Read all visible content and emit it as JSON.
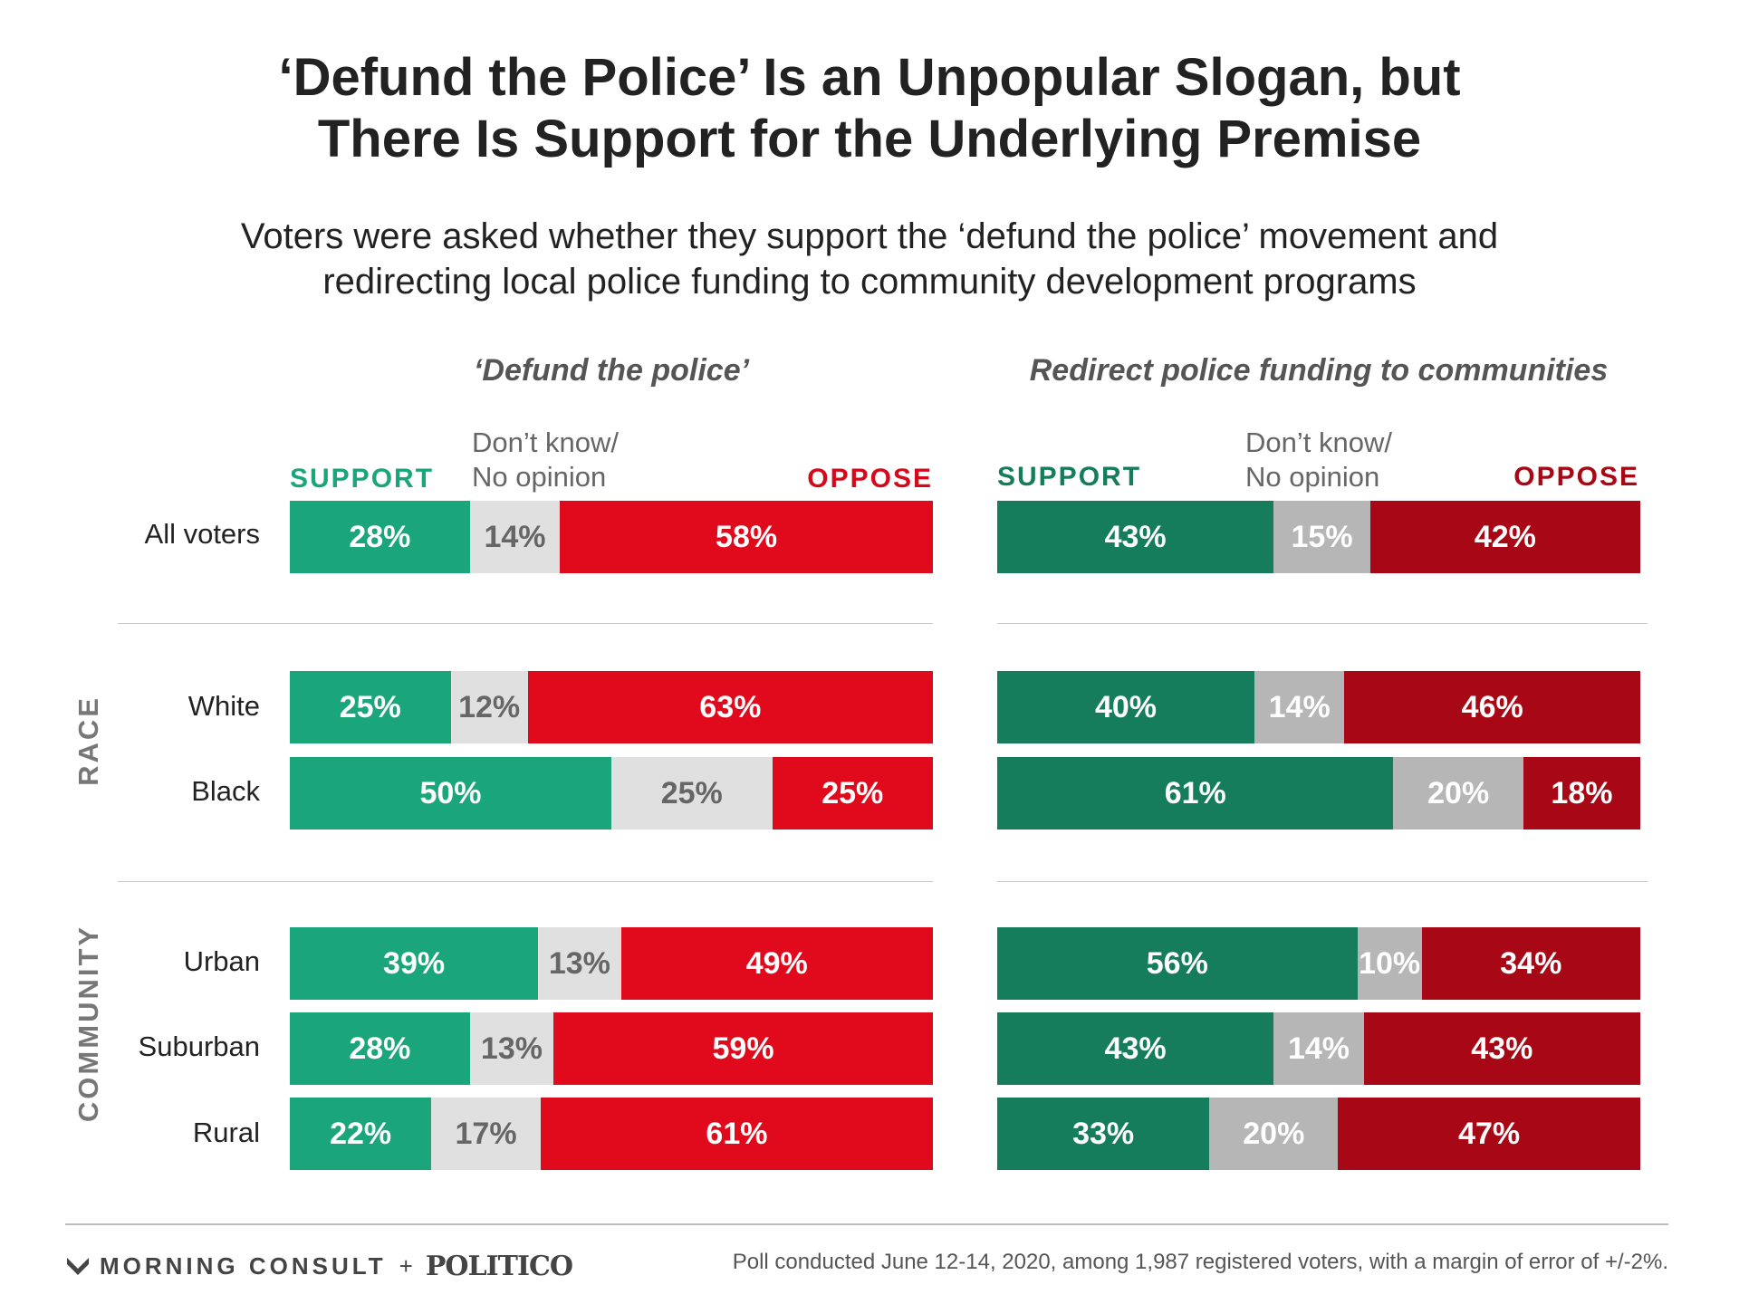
{
  "title_line1": "‘Defund the Police’ Is an Unpopular Slogan, but",
  "title_line2": "There Is Support for the Underlying Premise",
  "subtitle_line1": "Voters were asked whether they support the ‘defund the police’ movement and",
  "subtitle_line2": "redirecting local police funding to community development programs",
  "footer": {
    "morning_consult": "MORNING CONSULT",
    "plus": "+",
    "politico": "POLITICO",
    "source": "Poll conducted June 12-14, 2020, among 1,987 registered voters, with a margin of error of +/-2%."
  },
  "colors": {
    "left_support": "#1aa57a",
    "left_dk": "#e0e0e0",
    "left_oppose": "#e10a1c",
    "right_support": "#157d5b",
    "right_dk": "#b6b6b6",
    "right_oppose": "#a80815"
  },
  "chart_data": [
    {
      "type": "bar",
      "stacked": true,
      "orientation": "horizontal",
      "title": "‘Defund the police’",
      "legend": [
        "SUPPORT",
        "Don’t know/",
        "No opinion",
        "OPPOSE"
      ],
      "groups": [
        "",
        "RACE",
        "COMMUNITY"
      ],
      "categories": [
        "All voters",
        "White",
        "Black",
        "Urban",
        "Suburban",
        "Rural"
      ],
      "series": [
        {
          "name": "SUPPORT",
          "values": [
            28,
            25,
            50,
            39,
            28,
            22
          ]
        },
        {
          "name": "Don’t know/No opinion",
          "values": [
            14,
            12,
            25,
            13,
            13,
            17
          ]
        },
        {
          "name": "OPPOSE",
          "values": [
            58,
            63,
            25,
            49,
            59,
            61
          ]
        }
      ]
    },
    {
      "type": "bar",
      "stacked": true,
      "orientation": "horizontal",
      "title": "Redirect police funding to communities",
      "legend": [
        "SUPPORT",
        "Don’t know/",
        "No opinion",
        "OPPOSE"
      ],
      "groups": [
        "",
        "RACE",
        "COMMUNITY"
      ],
      "categories": [
        "All voters",
        "White",
        "Black",
        "Urban",
        "Suburban",
        "Rural"
      ],
      "series": [
        {
          "name": "SUPPORT",
          "values": [
            43,
            40,
            61,
            56,
            43,
            33
          ]
        },
        {
          "name": "Don’t know/No opinion",
          "values": [
            15,
            14,
            20,
            10,
            14,
            20
          ]
        },
        {
          "name": "OPPOSE",
          "values": [
            42,
            46,
            18,
            34,
            43,
            47
          ]
        }
      ]
    }
  ]
}
